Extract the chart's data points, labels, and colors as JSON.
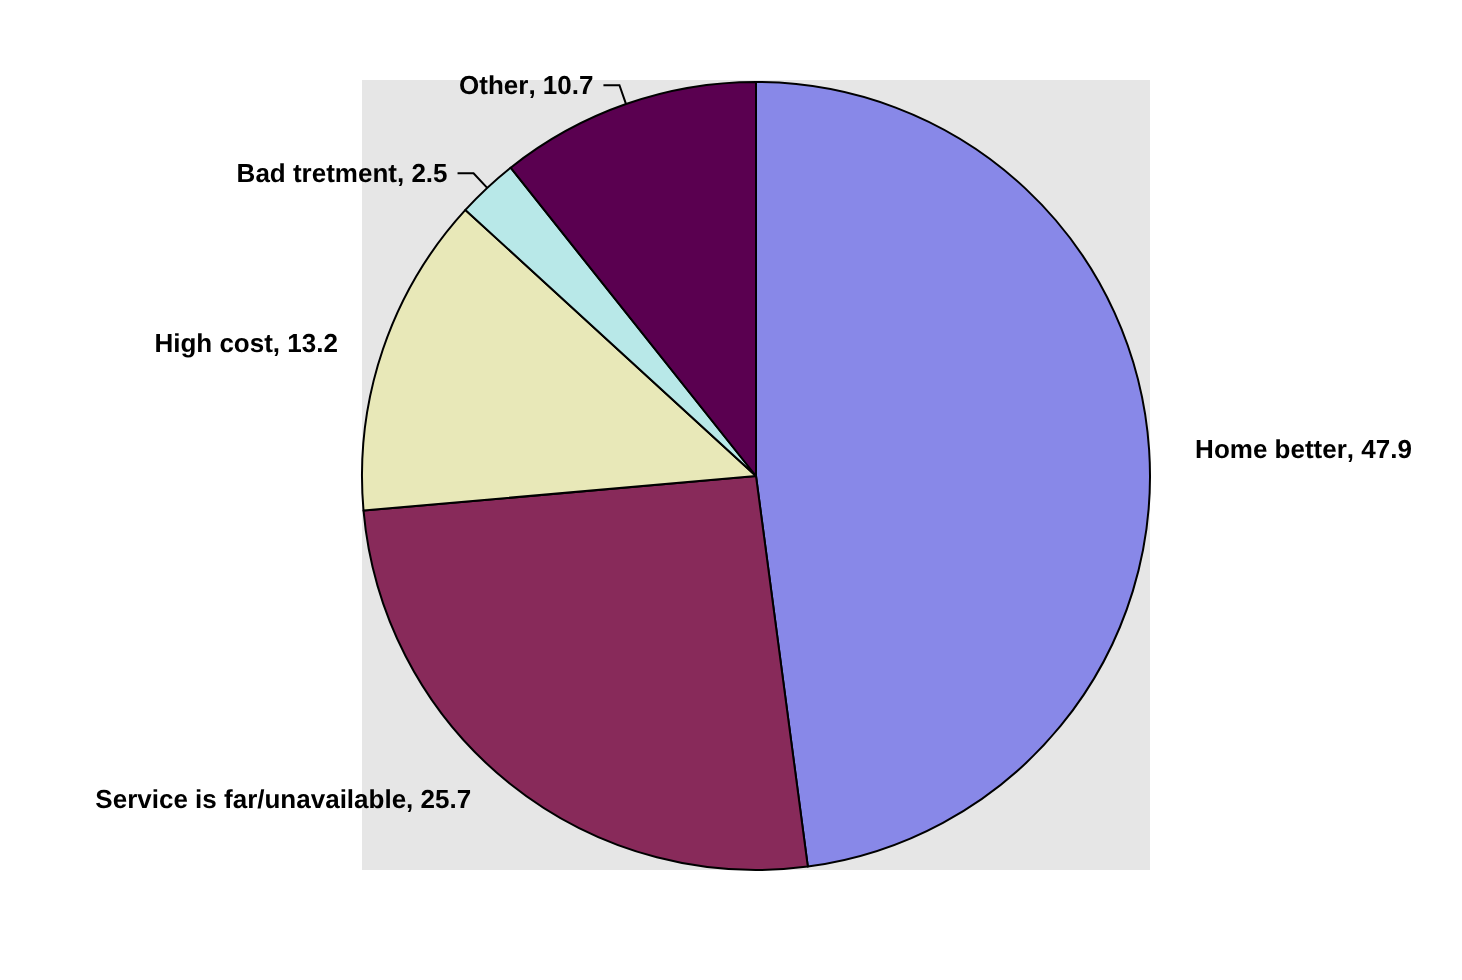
{
  "chart_data": {
    "type": "pie",
    "categories": [
      "Home better",
      "Service is far/unavailable",
      "High cost",
      "Bad tretment",
      "Other"
    ],
    "values": [
      47.9,
      25.7,
      13.2,
      2.5,
      10.7
    ],
    "colors": [
      "#8888e8",
      "#882a5a",
      "#e8e8b8",
      "#b8e8e8",
      "#5a0050"
    ],
    "value_labels": [
      ", 47.9",
      ", 25.7",
      ", 13.2",
      ", 2.5",
      ", 10.7"
    ],
    "legend": false
  }
}
